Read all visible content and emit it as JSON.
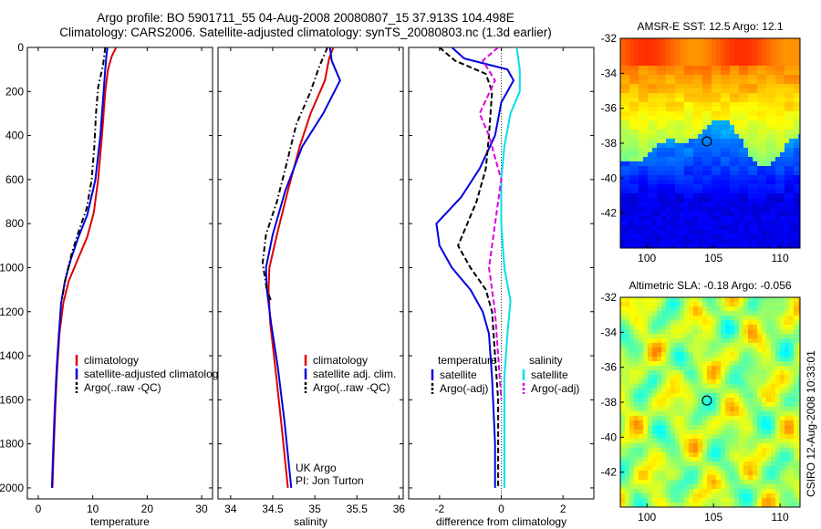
{
  "header": {
    "title_line1": "Argo profile: BO 5901711_55 04-Aug-2008 20080807_15 37.913S 104.498E",
    "title_line2": "Climatology: CARS2006. Satellite-adjusted climatology: synTS_20080803.nc (1.3d earlier)"
  },
  "side_label": "CSIRO 12-Aug-2008 10:33:01",
  "colors": {
    "climatology": "#dd0000",
    "satellite": "#0000dd",
    "argo": "#000000",
    "sal_satellite": "#00e0e8",
    "sal_argo": "#dd00dd"
  },
  "chart_data": [
    {
      "id": "temperature",
      "type": "line",
      "xlabel": "temperature",
      "ylabel": "",
      "xlim": [
        -2,
        32
      ],
      "ylim": [
        2050,
        0
      ],
      "xticks": [
        "0",
        "10",
        "20",
        "30"
      ],
      "yticks": [
        "0",
        "200",
        "400",
        "600",
        "800",
        "1000",
        "1200",
        "1400",
        "1600",
        "1800",
        "2000"
      ],
      "legend": [
        "climatology",
        "satellite-adjusted climatology",
        "Argo(..raw -QC)"
      ],
      "series": [
        {
          "name": "climatology",
          "color_key": "climatology",
          "dash": "",
          "points": [
            [
              14.3,
              0
            ],
            [
              13.5,
              40
            ],
            [
              12.8,
              100
            ],
            [
              12.3,
              200
            ],
            [
              11.7,
              400
            ],
            [
              11.0,
              600
            ],
            [
              10.2,
              750
            ],
            [
              9.0,
              860
            ],
            [
              7.3,
              960
            ],
            [
              5.6,
              1060
            ],
            [
              4.6,
              1160
            ],
            [
              3.9,
              1300
            ],
            [
              3.5,
              1450
            ],
            [
              3.1,
              1650
            ],
            [
              2.8,
              1850
            ],
            [
              2.6,
              2000
            ]
          ]
        },
        {
          "name": "satellite-adjusted climatology",
          "color_key": "satellite",
          "dash": "",
          "points": [
            [
              12.7,
              0
            ],
            [
              12.5,
              40
            ],
            [
              12.3,
              100
            ],
            [
              12.0,
              200
            ],
            [
              11.4,
              400
            ],
            [
              10.5,
              600
            ],
            [
              9.0,
              760
            ],
            [
              7.4,
              860
            ],
            [
              6.0,
              960
            ],
            [
              4.9,
              1060
            ],
            [
              4.2,
              1160
            ],
            [
              3.8,
              1300
            ],
            [
              3.4,
              1450
            ],
            [
              3.0,
              1650
            ],
            [
              2.7,
              1850
            ],
            [
              2.5,
              2000
            ]
          ]
        },
        {
          "name": "Argo(..raw -QC)",
          "color_key": "argo",
          "dash": "6,3,1.5,3",
          "points": [
            [
              12.3,
              0
            ],
            [
              11.9,
              80
            ],
            [
              11.0,
              180
            ],
            [
              10.6,
              300
            ],
            [
              10.3,
              450
            ],
            [
              9.8,
              600
            ],
            [
              8.9,
              730
            ],
            [
              7.5,
              830
            ],
            [
              6.2,
              930
            ],
            [
              5.1,
              1040
            ],
            [
              4.3,
              1150
            ]
          ]
        }
      ]
    },
    {
      "id": "salinity",
      "type": "line",
      "xlabel": "salinity",
      "ylabel": "",
      "xlim": [
        33.85,
        36.05
      ],
      "ylim": [
        2050,
        0
      ],
      "xticks": [
        "34",
        "34.5",
        "35",
        "35.5",
        "36"
      ],
      "xtick_values": [
        34,
        34.5,
        35,
        35.5,
        36
      ],
      "legend": [
        "climatology",
        "satellite adj. clim.",
        "Argo(..raw -QC)"
      ],
      "annotation": [
        "UK Argo",
        "PI: Jon Turton"
      ],
      "series": [
        {
          "name": "climatology",
          "color_key": "climatology",
          "dash": "",
          "points": [
            [
              35.22,
              0
            ],
            [
              35.17,
              50
            ],
            [
              35.12,
              150
            ],
            [
              34.95,
              300
            ],
            [
              34.82,
              450
            ],
            [
              34.68,
              650
            ],
            [
              34.55,
              850
            ],
            [
              34.46,
              1000
            ],
            [
              34.45,
              1100
            ],
            [
              34.47,
              1250
            ],
            [
              34.53,
              1450
            ],
            [
              34.6,
              1700
            ],
            [
              34.68,
              2000
            ]
          ]
        },
        {
          "name": "satellite adj. clim.",
          "color_key": "satellite",
          "dash": "",
          "points": [
            [
              35.18,
              0
            ],
            [
              35.2,
              60
            ],
            [
              35.3,
              150
            ],
            [
              35.1,
              300
            ],
            [
              34.85,
              450
            ],
            [
              34.65,
              650
            ],
            [
              34.5,
              850
            ],
            [
              34.42,
              1000
            ],
            [
              34.43,
              1100
            ],
            [
              34.48,
              1250
            ],
            [
              34.56,
              1450
            ],
            [
              34.64,
              1700
            ],
            [
              34.72,
              2000
            ]
          ]
        },
        {
          "name": "Argo(..raw -QC)",
          "color_key": "argo",
          "dash": "6,3,1.5,3",
          "points": [
            [
              35.15,
              0
            ],
            [
              35.05,
              90
            ],
            [
              34.95,
              200
            ],
            [
              34.78,
              350
            ],
            [
              34.65,
              550
            ],
            [
              34.55,
              700
            ],
            [
              34.42,
              850
            ],
            [
              34.38,
              980
            ],
            [
              34.43,
              1100
            ],
            [
              34.48,
              1150
            ]
          ]
        }
      ]
    },
    {
      "id": "difference",
      "type": "line",
      "xlabel": "difference from climatology",
      "ylabel": "",
      "xlim": [
        -3,
        3
      ],
      "ylim": [
        2050,
        0
      ],
      "xticks": [
        "-2",
        "0",
        "2"
      ],
      "xtick_values": [
        -2,
        0,
        2
      ],
      "legend_groups": [
        {
          "heading": "temperature",
          "items": [
            "satellite",
            "Argo(-adj)"
          ]
        },
        {
          "heading": "salinity",
          "items": [
            "satellite",
            "Argo(-adj)"
          ]
        }
      ],
      "series": [
        {
          "name": "satellite",
          "group": "temperature",
          "color_key": "satellite",
          "dash": "",
          "points": [
            [
              -1.6,
              0
            ],
            [
              -1.2,
              50
            ],
            [
              0.2,
              100
            ],
            [
              0.4,
              150
            ],
            [
              0.0,
              250
            ],
            [
              -0.2,
              400
            ],
            [
              -0.7,
              550
            ],
            [
              -1.3,
              680
            ],
            [
              -2.1,
              800
            ],
            [
              -2.0,
              900
            ],
            [
              -1.6,
              1000
            ],
            [
              -1.0,
              1100
            ],
            [
              -0.6,
              1200
            ],
            [
              -0.4,
              1300
            ],
            [
              -0.3,
              1500
            ],
            [
              -0.2,
              1800
            ],
            [
              -0.2,
              2000
            ]
          ]
        },
        {
          "name": "Argo(-adj)",
          "group": "temperature",
          "color_key": "argo",
          "dash": "6,3",
          "points": [
            [
              -2.0,
              0
            ],
            [
              -1.5,
              60
            ],
            [
              -0.5,
              120
            ],
            [
              -0.3,
              200
            ],
            [
              -0.4,
              400
            ],
            [
              -0.5,
              550
            ],
            [
              -0.8,
              700
            ],
            [
              -1.1,
              800
            ],
            [
              -1.4,
              900
            ],
            [
              -1.0,
              1000
            ],
            [
              -0.5,
              1100
            ],
            [
              -0.3,
              1200
            ],
            [
              -0.2,
              1400
            ],
            [
              -0.1,
              1600
            ],
            [
              -0.1,
              1800
            ],
            [
              -0.1,
              2000
            ]
          ]
        },
        {
          "name": "satellite",
          "group": "salinity",
          "color_key": "sal_satellite",
          "dash": "",
          "points": [
            [
              0.5,
              0
            ],
            [
              0.6,
              100
            ],
            [
              0.6,
              200
            ],
            [
              0.3,
              300
            ],
            [
              0.1,
              450
            ],
            [
              0.0,
              600
            ],
            [
              0.0,
              800
            ],
            [
              0.1,
              1000
            ],
            [
              0.3,
              1150
            ],
            [
              0.2,
              1300
            ],
            [
              0.1,
              1500
            ],
            [
              0.1,
              1800
            ],
            [
              0.1,
              2000
            ]
          ]
        },
        {
          "name": "Argo(-adj)",
          "group": "salinity",
          "color_key": "sal_argo",
          "dash": "6,3",
          "points": [
            [
              -0.1,
              0
            ],
            [
              -0.6,
              60
            ],
            [
              -0.2,
              150
            ],
            [
              -0.7,
              300
            ],
            [
              -0.4,
              400
            ],
            [
              -0.2,
              500
            ],
            [
              0.0,
              600
            ],
            [
              -0.2,
              800
            ],
            [
              -0.4,
              1000
            ],
            [
              -0.3,
              1100
            ],
            [
              -0.2,
              1200
            ],
            [
              -0.1,
              1400
            ],
            [
              0.0,
              1600
            ]
          ]
        }
      ]
    }
  ],
  "maps": [
    {
      "id": "sst",
      "title": "AMSR-E SST: 12.5 Argo: 12.1",
      "xticks": [
        "100",
        "105",
        "110"
      ],
      "xtick_values": [
        100,
        105,
        110
      ],
      "yticks": [
        "-32",
        "-34",
        "-36",
        "-38",
        "-40",
        "-42"
      ],
      "ytick_values": [
        -32,
        -34,
        -36,
        -38,
        -40,
        -42
      ],
      "xlim": [
        98,
        111.5
      ],
      "ylim": [
        -32,
        -44
      ],
      "marker": [
        104.5,
        -37.9
      ]
    },
    {
      "id": "sla",
      "title": "Altimetric SLA: -0.18 Argo: -0.056",
      "xticks": [
        "100",
        "105",
        "110"
      ],
      "xtick_values": [
        100,
        105,
        110
      ],
      "yticks": [
        "-32",
        "-34",
        "-36",
        "-38",
        "-40",
        "-42"
      ],
      "ytick_values": [
        -32,
        -34,
        -36,
        -38,
        -40,
        -42
      ],
      "xlim": [
        98,
        111.5
      ],
      "ylim": [
        -32,
        -44
      ],
      "marker": [
        104.5,
        -37.9
      ]
    }
  ]
}
